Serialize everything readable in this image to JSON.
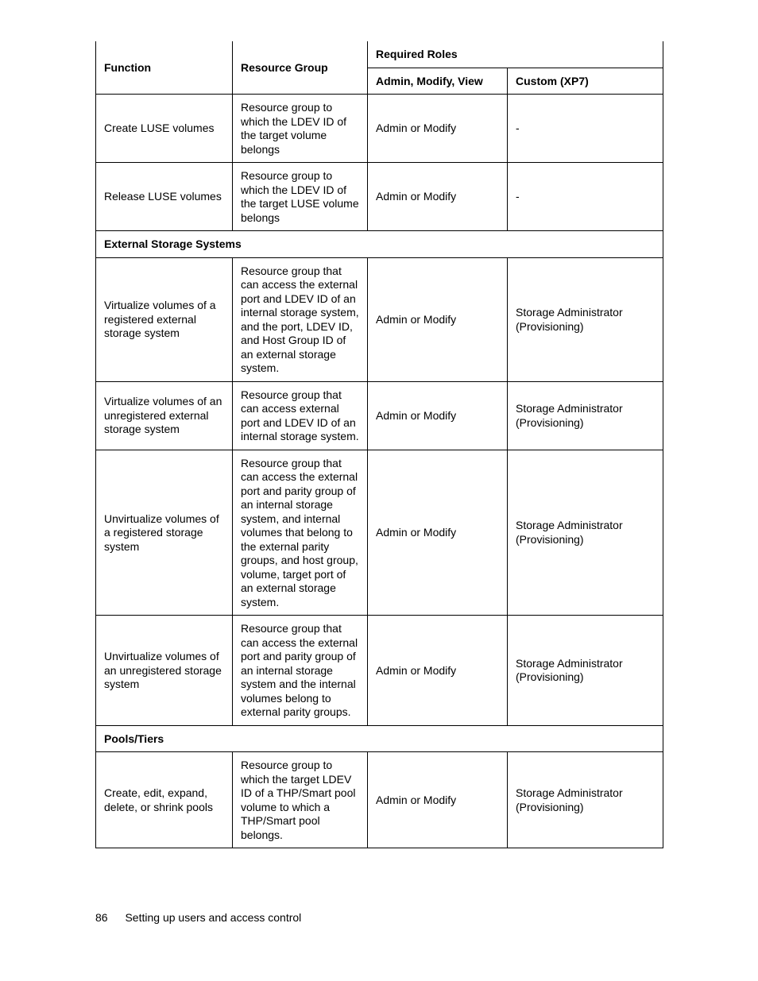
{
  "header": {
    "function": "Function",
    "resource_group": "Resource Group",
    "required_roles": "Required Roles",
    "amv": "Admin, Modify, View",
    "custom": "Custom (XP7)"
  },
  "rows": {
    "r1": {
      "func": "Create LUSE volumes",
      "rg": "Resource group to which the LDEV ID of the target volume belongs",
      "amv": "Admin or Modify",
      "custom": "-"
    },
    "r2": {
      "func": "Release LUSE volumes",
      "rg": "Resource group to which the LDEV ID of the target LUSE volume belongs",
      "amv": "Admin or Modify",
      "custom": "-"
    },
    "sec1": "External Storage Systems",
    "r3": {
      "func": "Virtualize volumes of a registered external storage system",
      "rg": "Resource group that can access the external port and LDEV ID of an internal storage system, and the port, LDEV ID, and Host Group ID of an external storage system.",
      "amv": "Admin or Modify",
      "custom": "Storage Administrator (Provisioning)"
    },
    "r4": {
      "func": "Virtualize volumes of an unregistered external storage system",
      "rg": "Resource group that can access external port and LDEV ID of an internal storage system.",
      "amv": "Admin or Modify",
      "custom": "Storage Administrator (Provisioning)"
    },
    "r5": {
      "func": "Unvirtualize volumes of a registered storage system",
      "rg": "Resource group that can access the external port and parity group of an internal storage system, and internal volumes that belong to the external parity groups, and host group, volume, target port of an external storage system.",
      "amv": "Admin or Modify",
      "custom": "Storage Administrator (Provisioning)"
    },
    "r6": {
      "func": "Unvirtualize volumes of an unregistered storage system",
      "rg": "Resource group that can access the external port and parity group of an internal storage system and the internal volumes belong to external parity groups.",
      "amv": "Admin or Modify",
      "custom": "Storage Administrator (Provisioning)"
    },
    "sec2": "Pools/Tiers",
    "r7": {
      "func": "Create, edit, expand, delete, or shrink pools",
      "rg": "Resource group to which the target LDEV ID of a THP/Smart pool volume to which a THP/Smart pool belongs.",
      "amv": "Admin or Modify",
      "custom": "Storage Administrator (Provisioning)"
    }
  },
  "footer": {
    "page_num": "86",
    "title": "Setting up users and access control"
  }
}
